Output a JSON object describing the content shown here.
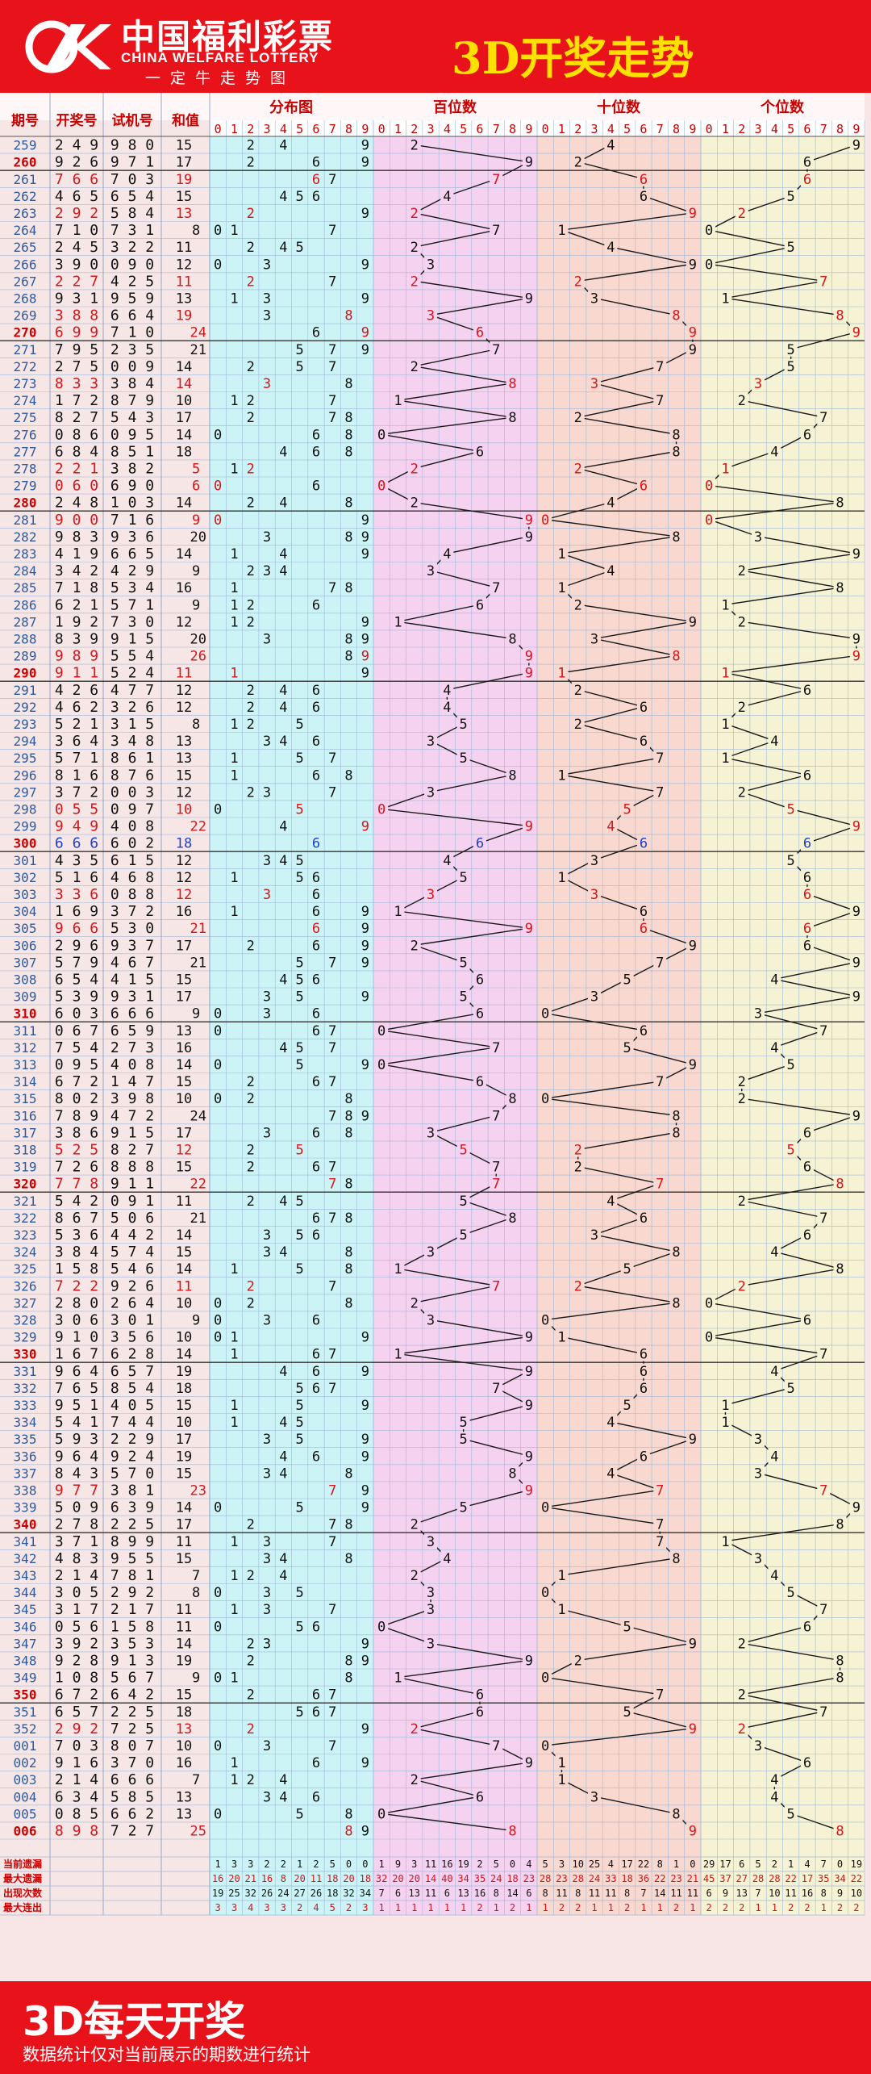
{
  "header": {
    "logo_cn": "中国福利彩票",
    "logo_en": "CHINA WELFARE LOTTERY",
    "slogan": "一定牛走势图",
    "title": "3D开奖走势"
  },
  "footer": {
    "title": "3D每天开奖",
    "note": "数据统计仅对当前展示的期数进行统计"
  },
  "colors": {
    "red": "#e8121a",
    "title_yellow": "#ffe100",
    "header_text": "#c80000",
    "blue_number": "#1f3fd0",
    "zone_left": "#f7e6e6",
    "zone_fenbu": "#ccf4f6",
    "zone_bai": "#f6d2f1",
    "zone_shi": "#f8d8cf",
    "zone_ge": "#f6f2d4"
  },
  "chart_data": {
    "type": "table",
    "columns": [
      "期号",
      "开奖号",
      "试机号",
      "和值",
      "分布图",
      "百位数",
      "十位数",
      "个位数"
    ],
    "digits": [
      "0",
      "1",
      "2",
      "3",
      "4",
      "5",
      "6",
      "7",
      "8",
      "9"
    ],
    "draws": [
      {
        "issue": "259",
        "result": "249",
        "trial": "980",
        "sum": "15"
      },
      {
        "issue": "260",
        "result": "926",
        "trial": "971",
        "sum": "17"
      },
      {
        "issue": "261",
        "result": "766",
        "trial": "703",
        "sum": "19"
      },
      {
        "issue": "262",
        "result": "465",
        "trial": "654",
        "sum": "15"
      },
      {
        "issue": "263",
        "result": "292",
        "trial": "584",
        "sum": "13"
      },
      {
        "issue": "264",
        "result": "710",
        "trial": "731",
        "sum": "8"
      },
      {
        "issue": "265",
        "result": "245",
        "trial": "322",
        "sum": "11"
      },
      {
        "issue": "266",
        "result": "390",
        "trial": "090",
        "sum": "12"
      },
      {
        "issue": "267",
        "result": "227",
        "trial": "425",
        "sum": "11"
      },
      {
        "issue": "268",
        "result": "931",
        "trial": "959",
        "sum": "13"
      },
      {
        "issue": "269",
        "result": "388",
        "trial": "664",
        "sum": "19"
      },
      {
        "issue": "270",
        "result": "699",
        "trial": "710",
        "sum": "24"
      },
      {
        "issue": "271",
        "result": "795",
        "trial": "235",
        "sum": "21"
      },
      {
        "issue": "272",
        "result": "275",
        "trial": "009",
        "sum": "14"
      },
      {
        "issue": "273",
        "result": "833",
        "trial": "384",
        "sum": "14"
      },
      {
        "issue": "274",
        "result": "172",
        "trial": "879",
        "sum": "10"
      },
      {
        "issue": "275",
        "result": "827",
        "trial": "543",
        "sum": "17"
      },
      {
        "issue": "276",
        "result": "086",
        "trial": "095",
        "sum": "14"
      },
      {
        "issue": "277",
        "result": "684",
        "trial": "851",
        "sum": "18"
      },
      {
        "issue": "278",
        "result": "221",
        "trial": "382",
        "sum": "5"
      },
      {
        "issue": "279",
        "result": "060",
        "trial": "690",
        "sum": "6"
      },
      {
        "issue": "280",
        "result": "248",
        "trial": "103",
        "sum": "14"
      },
      {
        "issue": "281",
        "result": "900",
        "trial": "716",
        "sum": "9"
      },
      {
        "issue": "282",
        "result": "983",
        "trial": "936",
        "sum": "20"
      },
      {
        "issue": "283",
        "result": "419",
        "trial": "665",
        "sum": "14"
      },
      {
        "issue": "284",
        "result": "342",
        "trial": "429",
        "sum": "9"
      },
      {
        "issue": "285",
        "result": "718",
        "trial": "534",
        "sum": "16"
      },
      {
        "issue": "286",
        "result": "621",
        "trial": "571",
        "sum": "9"
      },
      {
        "issue": "287",
        "result": "192",
        "trial": "730",
        "sum": "12"
      },
      {
        "issue": "288",
        "result": "839",
        "trial": "915",
        "sum": "20"
      },
      {
        "issue": "289",
        "result": "989",
        "trial": "554",
        "sum": "26"
      },
      {
        "issue": "290",
        "result": "911",
        "trial": "524",
        "sum": "11"
      },
      {
        "issue": "291",
        "result": "426",
        "trial": "477",
        "sum": "12"
      },
      {
        "issue": "292",
        "result": "462",
        "trial": "326",
        "sum": "12"
      },
      {
        "issue": "293",
        "result": "521",
        "trial": "315",
        "sum": "8"
      },
      {
        "issue": "294",
        "result": "364",
        "trial": "348",
        "sum": "13"
      },
      {
        "issue": "295",
        "result": "571",
        "trial": "861",
        "sum": "13"
      },
      {
        "issue": "296",
        "result": "816",
        "trial": "876",
        "sum": "15"
      },
      {
        "issue": "297",
        "result": "372",
        "trial": "003",
        "sum": "12"
      },
      {
        "issue": "298",
        "result": "055",
        "trial": "097",
        "sum": "10"
      },
      {
        "issue": "299",
        "result": "949",
        "trial": "408",
        "sum": "22"
      },
      {
        "issue": "300",
        "result": "666",
        "trial": "602",
        "sum": "18"
      },
      {
        "issue": "301",
        "result": "435",
        "trial": "615",
        "sum": "12"
      },
      {
        "issue": "302",
        "result": "516",
        "trial": "468",
        "sum": "12"
      },
      {
        "issue": "303",
        "result": "336",
        "trial": "088",
        "sum": "12"
      },
      {
        "issue": "304",
        "result": "169",
        "trial": "372",
        "sum": "16"
      },
      {
        "issue": "305",
        "result": "966",
        "trial": "530",
        "sum": "21"
      },
      {
        "issue": "306",
        "result": "296",
        "trial": "937",
        "sum": "17"
      },
      {
        "issue": "307",
        "result": "579",
        "trial": "467",
        "sum": "21"
      },
      {
        "issue": "308",
        "result": "654",
        "trial": "415",
        "sum": "15"
      },
      {
        "issue": "309",
        "result": "539",
        "trial": "931",
        "sum": "17"
      },
      {
        "issue": "310",
        "result": "603",
        "trial": "666",
        "sum": "9"
      },
      {
        "issue": "311",
        "result": "067",
        "trial": "659",
        "sum": "13"
      },
      {
        "issue": "312",
        "result": "754",
        "trial": "273",
        "sum": "16"
      },
      {
        "issue": "313",
        "result": "095",
        "trial": "408",
        "sum": "14"
      },
      {
        "issue": "314",
        "result": "672",
        "trial": "147",
        "sum": "15"
      },
      {
        "issue": "315",
        "result": "802",
        "trial": "398",
        "sum": "10"
      },
      {
        "issue": "316",
        "result": "789",
        "trial": "472",
        "sum": "24"
      },
      {
        "issue": "317",
        "result": "386",
        "trial": "915",
        "sum": "17"
      },
      {
        "issue": "318",
        "result": "525",
        "trial": "827",
        "sum": "12"
      },
      {
        "issue": "319",
        "result": "726",
        "trial": "888",
        "sum": "15"
      },
      {
        "issue": "320",
        "result": "778",
        "trial": "911",
        "sum": "22"
      },
      {
        "issue": "321",
        "result": "542",
        "trial": "091",
        "sum": "11"
      },
      {
        "issue": "322",
        "result": "867",
        "trial": "506",
        "sum": "21"
      },
      {
        "issue": "323",
        "result": "536",
        "trial": "442",
        "sum": "14"
      },
      {
        "issue": "324",
        "result": "384",
        "trial": "574",
        "sum": "15"
      },
      {
        "issue": "325",
        "result": "158",
        "trial": "546",
        "sum": "14"
      },
      {
        "issue": "326",
        "result": "722",
        "trial": "926",
        "sum": "11"
      },
      {
        "issue": "327",
        "result": "280",
        "trial": "264",
        "sum": "10"
      },
      {
        "issue": "328",
        "result": "306",
        "trial": "301",
        "sum": "9"
      },
      {
        "issue": "329",
        "result": "910",
        "trial": "356",
        "sum": "10"
      },
      {
        "issue": "330",
        "result": "167",
        "trial": "628",
        "sum": "14"
      },
      {
        "issue": "331",
        "result": "964",
        "trial": "657",
        "sum": "19"
      },
      {
        "issue": "332",
        "result": "765",
        "trial": "854",
        "sum": "18"
      },
      {
        "issue": "333",
        "result": "951",
        "trial": "405",
        "sum": "15"
      },
      {
        "issue": "334",
        "result": "541",
        "trial": "744",
        "sum": "10"
      },
      {
        "issue": "335",
        "result": "593",
        "trial": "229",
        "sum": "17"
      },
      {
        "issue": "336",
        "result": "964",
        "trial": "924",
        "sum": "19"
      },
      {
        "issue": "337",
        "result": "843",
        "trial": "570",
        "sum": "15"
      },
      {
        "issue": "338",
        "result": "977",
        "trial": "381",
        "sum": "23"
      },
      {
        "issue": "339",
        "result": "509",
        "trial": "639",
        "sum": "14"
      },
      {
        "issue": "340",
        "result": "278",
        "trial": "225",
        "sum": "17"
      },
      {
        "issue": "341",
        "result": "371",
        "trial": "899",
        "sum": "11"
      },
      {
        "issue": "342",
        "result": "483",
        "trial": "955",
        "sum": "15"
      },
      {
        "issue": "343",
        "result": "214",
        "trial": "781",
        "sum": "7"
      },
      {
        "issue": "344",
        "result": "305",
        "trial": "292",
        "sum": "8"
      },
      {
        "issue": "345",
        "result": "317",
        "trial": "217",
        "sum": "11"
      },
      {
        "issue": "346",
        "result": "056",
        "trial": "158",
        "sum": "11"
      },
      {
        "issue": "347",
        "result": "392",
        "trial": "353",
        "sum": "14"
      },
      {
        "issue": "348",
        "result": "928",
        "trial": "913",
        "sum": "19"
      },
      {
        "issue": "349",
        "result": "108",
        "trial": "567",
        "sum": "9"
      },
      {
        "issue": "350",
        "result": "672",
        "trial": "642",
        "sum": "15"
      },
      {
        "issue": "351",
        "result": "657",
        "trial": "225",
        "sum": "18"
      },
      {
        "issue": "352",
        "result": "292",
        "trial": "725",
        "sum": "13"
      },
      {
        "issue": "001",
        "result": "703",
        "trial": "807",
        "sum": "10"
      },
      {
        "issue": "002",
        "result": "916",
        "trial": "370",
        "sum": "16"
      },
      {
        "issue": "003",
        "result": "214",
        "trial": "666",
        "sum": "7"
      },
      {
        "issue": "004",
        "result": "634",
        "trial": "585",
        "sum": "13"
      },
      {
        "issue": "005",
        "result": "085",
        "trial": "662",
        "sum": "13"
      },
      {
        "issue": "006",
        "result": "898",
        "trial": "727",
        "sum": "25"
      }
    ],
    "stats": [
      {
        "label": "当前遗漏",
        "values": [
          "1",
          "3",
          "3",
          "2",
          "2",
          "1",
          "2",
          "5",
          "0",
          "0",
          "1",
          "9",
          "3",
          "11",
          "16",
          "19",
          "2",
          "5",
          "0",
          "4",
          "5",
          "3",
          "10",
          "25",
          "4",
          "17",
          "22",
          "8",
          "1",
          "0",
          "29",
          "17",
          "6",
          "5",
          "2",
          "1",
          "4",
          "7",
          "0",
          "19"
        ]
      },
      {
        "label": "最大遗漏",
        "values": [
          "16",
          "20",
          "21",
          "16",
          "8",
          "20",
          "11",
          "18",
          "20",
          "18",
          "32",
          "20",
          "20",
          "14",
          "40",
          "34",
          "35",
          "24",
          "18",
          "23",
          "28",
          "23",
          "28",
          "24",
          "33",
          "18",
          "36",
          "22",
          "23",
          "21",
          "45",
          "37",
          "27",
          "28",
          "28",
          "22",
          "17",
          "35",
          "34",
          "22"
        ]
      },
      {
        "label": "出现次数",
        "values": [
          "19",
          "25",
          "32",
          "26",
          "24",
          "27",
          "26",
          "18",
          "32",
          "34",
          "7",
          "6",
          "13",
          "11",
          "6",
          "13",
          "16",
          "8",
          "14",
          "6",
          "8",
          "11",
          "8",
          "11",
          "11",
          "8",
          "7",
          "14",
          "11",
          "11",
          "6",
          "9",
          "13",
          "7",
          "10",
          "11",
          "16",
          "8",
          "9",
          "10"
        ]
      },
      {
        "label": "最大连出",
        "values": [
          "3",
          "3",
          "4",
          "3",
          "3",
          "2",
          "4",
          "5",
          "2",
          "3",
          "1",
          "1",
          "1",
          "1",
          "1",
          "1",
          "2",
          "1",
          "2",
          "1",
          "1",
          "2",
          "2",
          "1",
          "1",
          "2",
          "1",
          "1",
          "2",
          "1",
          "2",
          "2",
          "2",
          "1",
          "1",
          "2",
          "2",
          "1",
          "2",
          "2"
        ]
      }
    ]
  }
}
